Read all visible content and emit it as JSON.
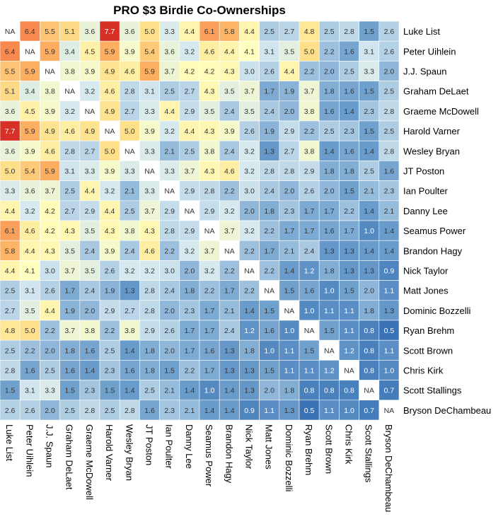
{
  "chart_data": {
    "type": "heatmap",
    "title": "PRO $3 Birdie Co-Ownerships",
    "missing_label": "NA",
    "players": [
      "Luke List",
      "Peter Uihlein",
      "J.J. Spaun",
      "Graham DeLaet",
      "Graeme McDowell",
      "Harold Varner",
      "Wesley Bryan",
      "JT Poston",
      "Ian Poulter",
      "Danny Lee",
      "Seamus Power",
      "Brandon Hagy",
      "Nick Taylor",
      "Matt Jones",
      "Dominic Bozzelli",
      "Ryan Brehm",
      "Scott Brown",
      "Chris Kirk",
      "Scott Stallings",
      "Bryson DeChambeau"
    ],
    "values": [
      [
        null,
        6.4,
        5.5,
        5.1,
        3.6,
        7.7,
        3.6,
        5.0,
        3.3,
        4.4,
        6.1,
        5.8,
        4.4,
        2.5,
        2.7,
        4.8,
        2.5,
        2.8,
        1.5,
        2.6
      ],
      [
        6.4,
        null,
        5.9,
        3.4,
        4.5,
        5.9,
        3.9,
        5.4,
        3.6,
        3.2,
        4.6,
        4.4,
        4.1,
        3.1,
        3.5,
        5.0,
        2.2,
        1.6,
        3.1,
        2.6
      ],
      [
        5.5,
        5.9,
        null,
        3.8,
        3.9,
        4.9,
        4.6,
        5.9,
        3.7,
        4.2,
        4.2,
        4.3,
        3.0,
        2.6,
        4.4,
        2.2,
        2.0,
        2.5,
        3.3,
        2.0
      ],
      [
        5.1,
        3.4,
        3.8,
        null,
        3.2,
        4.6,
        2.8,
        3.1,
        2.5,
        2.7,
        4.3,
        3.5,
        3.7,
        1.7,
        1.9,
        3.7,
        1.8,
        1.6,
        1.5,
        2.5
      ],
      [
        3.6,
        4.5,
        3.9,
        3.2,
        null,
        4.9,
        2.7,
        3.3,
        4.4,
        2.9,
        3.5,
        2.4,
        3.5,
        2.4,
        2.0,
        3.8,
        1.6,
        1.4,
        2.3,
        2.8
      ],
      [
        7.7,
        5.9,
        4.9,
        4.6,
        4.9,
        null,
        5.0,
        3.9,
        3.2,
        4.4,
        4.3,
        3.9,
        2.6,
        1.9,
        2.9,
        2.2,
        2.5,
        2.3,
        1.5,
        2.5
      ],
      [
        3.6,
        3.9,
        4.6,
        2.8,
        2.7,
        5.0,
        null,
        3.3,
        2.1,
        2.5,
        3.8,
        2.4,
        3.2,
        1.3,
        2.7,
        3.8,
        1.4,
        1.6,
        1.4,
        2.8
      ],
      [
        5.0,
        5.4,
        5.9,
        3.1,
        3.3,
        3.9,
        3.3,
        null,
        3.3,
        3.7,
        4.3,
        4.6,
        3.2,
        2.8,
        2.8,
        2.9,
        1.8,
        1.8,
        2.5,
        1.6
      ],
      [
        3.3,
        3.6,
        3.7,
        2.5,
        4.4,
        3.2,
        2.1,
        3.3,
        null,
        2.9,
        2.8,
        2.2,
        3.0,
        2.4,
        2.0,
        2.6,
        2.0,
        1.5,
        2.1,
        2.3
      ],
      [
        4.4,
        3.2,
        4.2,
        2.7,
        2.9,
        4.4,
        2.5,
        3.7,
        2.9,
        null,
        2.9,
        3.2,
        2.0,
        1.8,
        2.3,
        1.7,
        1.7,
        2.2,
        1.4,
        2.1
      ],
      [
        6.1,
        4.6,
        4.2,
        4.3,
        3.5,
        4.3,
        3.8,
        4.3,
        2.8,
        2.9,
        null,
        3.7,
        3.2,
        2.2,
        1.7,
        1.7,
        1.6,
        1.7,
        1.0,
        1.4
      ],
      [
        5.8,
        4.4,
        4.3,
        3.5,
        2.4,
        3.9,
        2.4,
        4.6,
        2.2,
        3.2,
        3.7,
        null,
        2.2,
        1.7,
        2.1,
        2.4,
        1.3,
        1.3,
        1.4,
        1.4
      ],
      [
        4.4,
        4.1,
        3.0,
        3.7,
        3.5,
        2.6,
        3.2,
        3.2,
        3.0,
        2.0,
        3.2,
        2.2,
        null,
        2.2,
        1.4,
        1.2,
        1.8,
        1.3,
        1.3,
        0.9
      ],
      [
        2.5,
        3.1,
        2.6,
        1.7,
        2.4,
        1.9,
        1.3,
        2.8,
        2.4,
        1.8,
        2.2,
        1.7,
        2.2,
        null,
        1.5,
        1.6,
        1.0,
        1.5,
        2.0,
        1.1
      ],
      [
        2.7,
        3.5,
        4.4,
        1.9,
        2.0,
        2.9,
        2.7,
        2.8,
        2.0,
        2.3,
        1.7,
        2.1,
        1.4,
        1.5,
        null,
        1.0,
        1.1,
        1.1,
        1.8,
        1.3
      ],
      [
        4.8,
        5.0,
        2.2,
        3.7,
        3.8,
        2.2,
        3.8,
        2.9,
        2.6,
        1.7,
        1.7,
        2.4,
        1.2,
        1.6,
        1.0,
        null,
        1.5,
        1.1,
        0.8,
        0.5
      ],
      [
        2.5,
        2.2,
        2.0,
        1.8,
        1.6,
        2.5,
        1.4,
        1.8,
        2.0,
        1.7,
        1.6,
        1.3,
        1.8,
        1.0,
        1.1,
        1.5,
        null,
        1.2,
        0.8,
        1.1
      ],
      [
        2.8,
        1.6,
        2.5,
        1.6,
        1.4,
        2.3,
        1.6,
        1.8,
        1.5,
        2.2,
        1.7,
        1.3,
        1.3,
        1.5,
        1.1,
        1.1,
        1.2,
        null,
        0.8,
        1.0
      ],
      [
        1.5,
        3.1,
        3.3,
        1.5,
        2.3,
        1.5,
        1.4,
        2.5,
        2.1,
        1.4,
        1.0,
        1.4,
        1.3,
        2.0,
        1.8,
        0.8,
        0.8,
        0.8,
        null,
        0.7
      ],
      [
        2.6,
        2.6,
        2.0,
        2.5,
        2.8,
        2.5,
        2.8,
        1.6,
        2.3,
        2.1,
        1.4,
        1.4,
        0.9,
        1.1,
        1.3,
        0.5,
        1.1,
        1.0,
        0.7,
        null
      ]
    ],
    "color_scale": {
      "stops": [
        "#3a73b5",
        "#6a9ccb",
        "#a3c5e0",
        "#d6e9ef",
        "#ffffbf",
        "#fee08b",
        "#fdae61",
        "#f46d43",
        "#d73027"
      ],
      "domain": [
        0.5,
        7.7
      ],
      "missing_color": "#ffffff"
    },
    "legend": "none"
  }
}
